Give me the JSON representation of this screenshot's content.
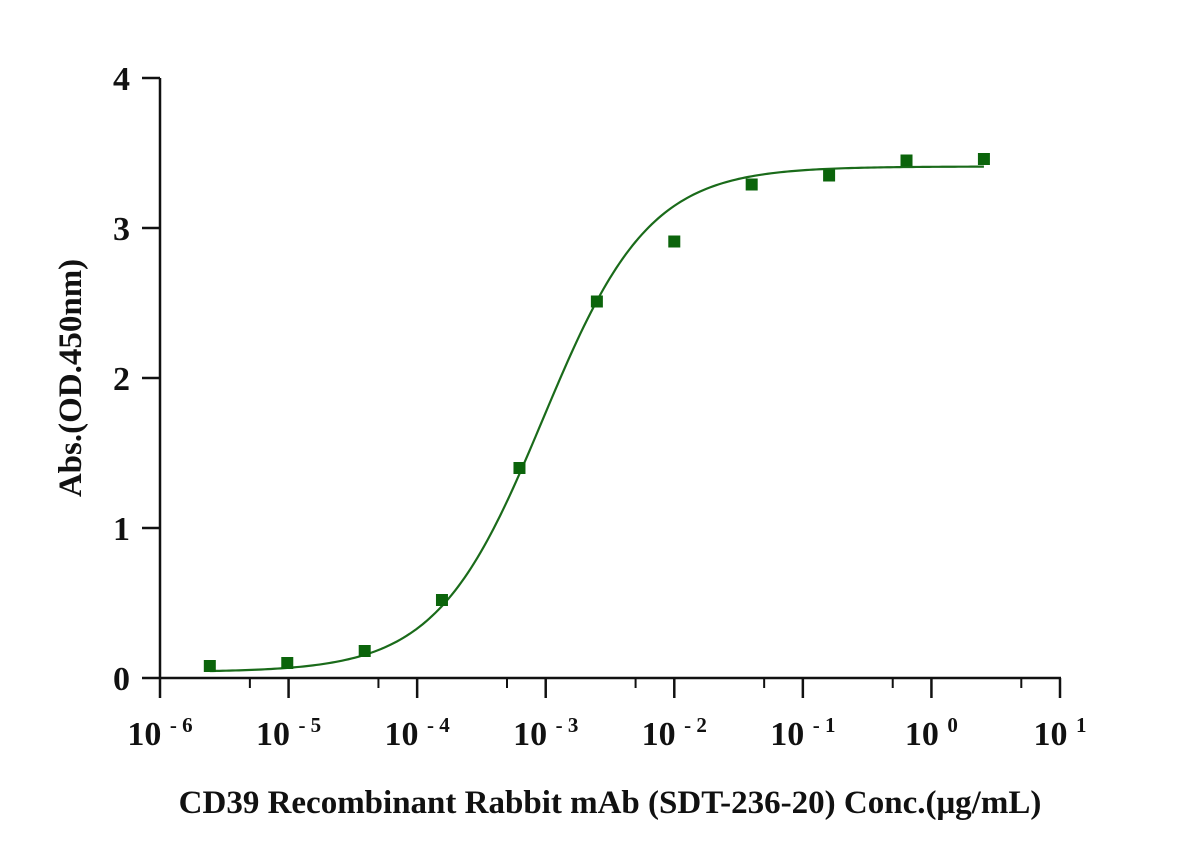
{
  "chart_data": {
    "type": "scatter",
    "x_scale": "log10",
    "xlim": [
      1e-06,
      10
    ],
    "ylim": [
      0,
      4
    ],
    "xlabel": "CD39 Recombinant Rabbit mAb (SDT-236-20)  Conc.(μg/mL)",
    "ylabel": "Abs.(OD.450nm)",
    "y_ticks": [
      "0",
      "1",
      "2",
      "3",
      "4"
    ],
    "x_ticks": [
      {
        "base": "10",
        "exp": "-6"
      },
      {
        "base": "10",
        "exp": "-5"
      },
      {
        "base": "10",
        "exp": "-4"
      },
      {
        "base": "10",
        "exp": "-3"
      },
      {
        "base": "10",
        "exp": "-2"
      },
      {
        "base": "10",
        "exp": "-1"
      },
      {
        "base": "10",
        "exp": "0"
      },
      {
        "base": "10",
        "exp": "1"
      }
    ],
    "series": [
      {
        "name": "CD39 Recombinant Rabbit mAb (SDT-236-20)",
        "x": [
          2.44e-06,
          9.77e-06,
          3.91e-05,
          0.000156,
          0.000625,
          0.0025,
          0.01,
          0.04,
          0.16,
          0.64,
          2.56
        ],
        "y": [
          0.08,
          0.1,
          0.18,
          0.52,
          1.4,
          2.51,
          2.91,
          3.29,
          3.35,
          3.45,
          3.46
        ],
        "fit": {
          "model": "4PL",
          "bottom": 0.04,
          "top": 3.41,
          "ec50": 0.00095,
          "hill": 1.05
        }
      }
    ],
    "colors": {
      "marker": "#0b640b",
      "curve": "#1a6b1a",
      "axis": "#111111"
    }
  }
}
